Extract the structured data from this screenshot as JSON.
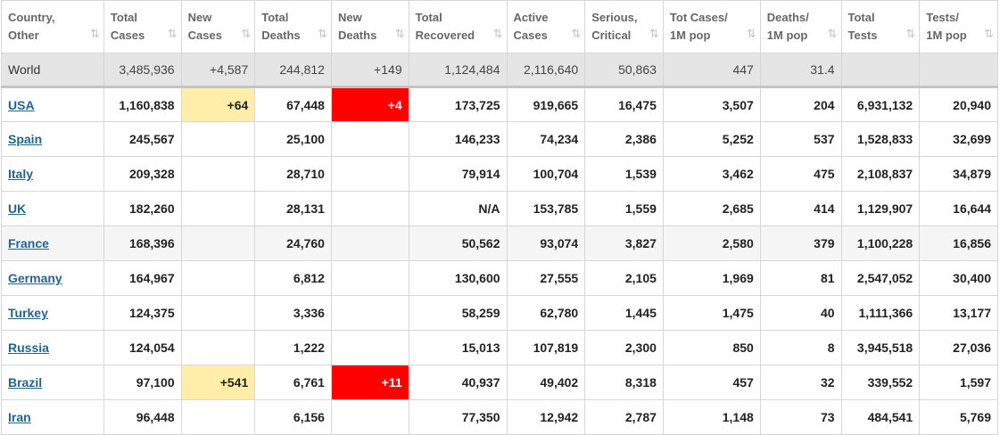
{
  "headers": [
    {
      "line1": "Country,",
      "line2": "Other",
      "sort": "⇅"
    },
    {
      "line1": "Total",
      "line2": "Cases",
      "sort": "⇅"
    },
    {
      "line1": "New",
      "line2": "Cases",
      "sort": "⇅"
    },
    {
      "line1": "Total",
      "line2": "Deaths",
      "sort": "⇅"
    },
    {
      "line1": "New",
      "line2": "Deaths",
      "sort": "⇅"
    },
    {
      "line1": "Total",
      "line2": "Recovered",
      "sort": "⇅"
    },
    {
      "line1": "Active",
      "line2": "Cases",
      "sort": "⇅"
    },
    {
      "line1": "Serious,",
      "line2": "Critical",
      "sort": "⇅"
    },
    {
      "line1": "Tot Cases/",
      "line2": "1M pop",
      "sort": "⇅"
    },
    {
      "line1": "Deaths/",
      "line2": "1M pop",
      "sort": "⇅"
    },
    {
      "line1": "Total",
      "line2": "Tests",
      "sort": "⇅"
    },
    {
      "line1": "Tests/",
      "line2": "1M pop",
      "sort": "⇅"
    }
  ],
  "world": [
    "World",
    "3,485,936",
    "+4,587",
    "244,812",
    "+149",
    "1,124,484",
    "2,116,640",
    "50,863",
    "447",
    "31.4",
    "",
    ""
  ],
  "rows": [
    [
      "USA",
      "1,160,838",
      "+64",
      "67,448",
      "+4",
      "173,725",
      "919,665",
      "16,475",
      "3,507",
      "204",
      "6,931,132",
      "20,940"
    ],
    [
      "Spain",
      "245,567",
      "",
      "25,100",
      "",
      "146,233",
      "74,234",
      "2,386",
      "5,252",
      "537",
      "1,528,833",
      "32,699"
    ],
    [
      "Italy",
      "209,328",
      "",
      "28,710",
      "",
      "79,914",
      "100,704",
      "1,539",
      "3,462",
      "475",
      "2,108,837",
      "34,879"
    ],
    [
      "UK",
      "182,260",
      "",
      "28,131",
      "",
      "N/A",
      "153,785",
      "1,559",
      "2,685",
      "414",
      "1,129,907",
      "16,644"
    ],
    [
      "France",
      "168,396",
      "",
      "24,760",
      "",
      "50,562",
      "93,074",
      "3,827",
      "2,580",
      "379",
      "1,100,228",
      "16,856"
    ],
    [
      "Germany",
      "164,967",
      "",
      "6,812",
      "",
      "130,600",
      "27,555",
      "2,105",
      "1,969",
      "81",
      "2,547,052",
      "30,400"
    ],
    [
      "Turkey",
      "124,375",
      "",
      "3,336",
      "",
      "58,259",
      "62,780",
      "1,445",
      "1,475",
      "40",
      "1,111,366",
      "13,177"
    ],
    [
      "Russia",
      "124,054",
      "",
      "1,222",
      "",
      "15,013",
      "107,819",
      "2,300",
      "850",
      "8",
      "3,945,518",
      "27,036"
    ],
    [
      "Brazil",
      "97,100",
      "+541",
      "6,761",
      "+11",
      "40,937",
      "49,402",
      "8,318",
      "457",
      "32",
      "339,552",
      "1,597"
    ],
    [
      "Iran",
      "96,448",
      "",
      "6,156",
      "",
      "77,350",
      "12,942",
      "2,787",
      "1,148",
      "73",
      "484,541",
      "5,769"
    ]
  ],
  "colors": {
    "new_cases_highlight": "#ffeeaa",
    "new_deaths_highlight": "#ff0000",
    "link": "#23648f",
    "world_row": "#e5e5e5"
  }
}
